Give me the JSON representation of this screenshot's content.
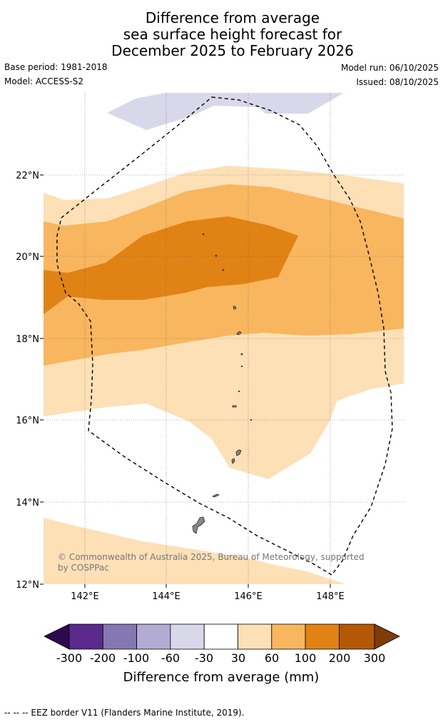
{
  "title": {
    "line1": "Difference from average",
    "line2": "sea surface height forecast for",
    "line3": "December 2025 to February 2026"
  },
  "meta": {
    "base_period": "Base period: 1981-2018",
    "model": "Model: ACCESS-S2",
    "model_run": "Model run: 06/10/2025",
    "issued": "Issued: 08/10/2025"
  },
  "map": {
    "lon_labels": [
      "142°E",
      "144°E",
      "146°E",
      "148°E"
    ],
    "lat_labels": [
      "22°N",
      "20°N",
      "18°N",
      "16°N",
      "14°N",
      "12°N"
    ],
    "lon_range": [
      141.0,
      149.8
    ],
    "lat_range": [
      12.0,
      24.0
    ],
    "copyright_line1": "© Commonwealth of Australia 2025, Bureau of Meteorology, supported",
    "copyright_line2": "by COSPPac"
  },
  "colorbar": {
    "ticks": [
      "-300",
      "-200",
      "-100",
      "-60",
      "-30",
      "30",
      "60",
      "100",
      "200",
      "300"
    ],
    "colors": [
      "#2d0a50",
      "#5a2a8c",
      "#8577b1",
      "#b2abd2",
      "#d8d8ea",
      "#ffffff",
      "#fde0b6",
      "#f8b65f",
      "#e08314",
      "#b35806",
      "#7f3b08"
    ],
    "label": "Difference from average (mm)"
  },
  "footer": {
    "legend": "--  --  -- EEZ border V11 (Flanders Marine Institute, 2019)."
  }
}
